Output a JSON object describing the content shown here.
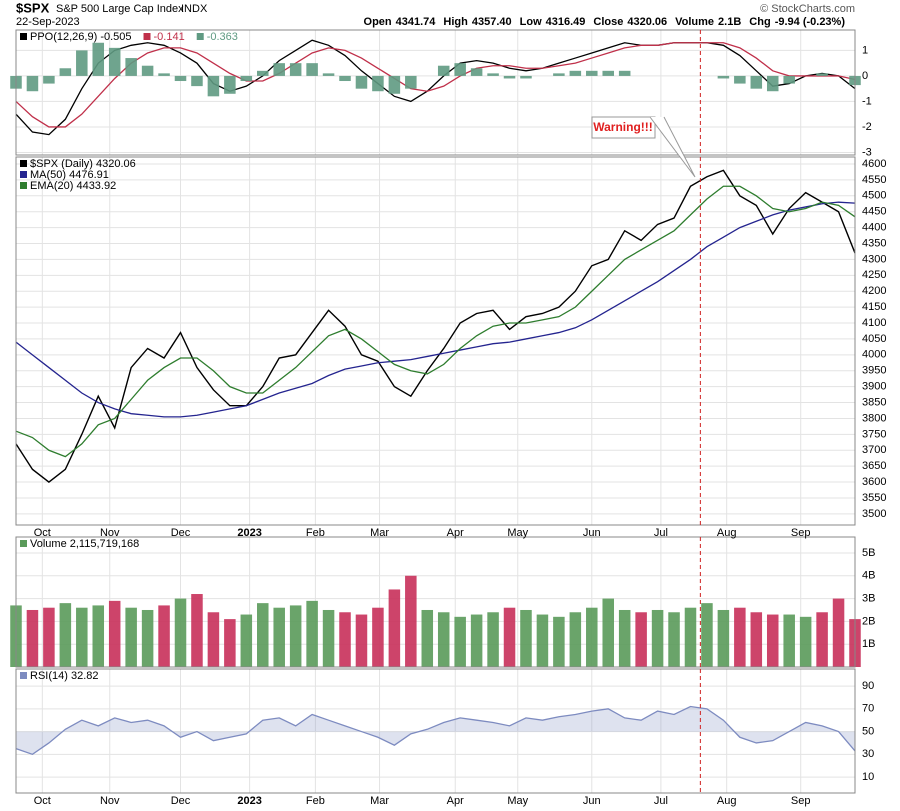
{
  "header": {
    "symbol": "$SPX",
    "name": "S&P 500 Large Cap Index",
    "exchange": "INDX",
    "date": "22-Sep-2023",
    "credit": "© StockCharts.com",
    "quote": [
      {
        "label": "Open",
        "value": "4341.74"
      },
      {
        "label": "High",
        "value": "4357.40"
      },
      {
        "label": "Low",
        "value": "4316.49"
      },
      {
        "label": "Close",
        "value": "4320.06"
      },
      {
        "label": "Volume",
        "value": "2.1B"
      },
      {
        "label": "Chg",
        "value": "-9.94 (-0.23%)"
      }
    ]
  },
  "chart_data": [
    {
      "type": "line",
      "ylim": [
        -3.1,
        1.8
      ],
      "yticks": [
        1,
        0,
        -1,
        -2,
        -3
      ],
      "grid": true,
      "series": [
        {
          "name": "PPO(12,26,9) -0.505",
          "color": "#000000",
          "values": [
            -1.5,
            -2.2,
            -2.3,
            -1.7,
            -0.5,
            0.5,
            1.0,
            1.2,
            1.3,
            1.2,
            0.9,
            0.5,
            -0.3,
            -0.6,
            -0.4,
            0,
            0.6,
            1.0,
            1.4,
            1.2,
            0.8,
            0.2,
            -0.3,
            -0.8,
            -1.0,
            -0.6,
            0,
            0.5,
            0.6,
            0.5,
            0.3,
            0.2,
            0.3,
            0.5,
            0.7,
            0.9,
            1.1,
            1.3,
            1.2,
            1.2,
            1.3,
            1.3,
            1.3,
            1.2,
            0.8,
            0.2,
            -0.4,
            -0.3,
            0,
            0.1,
            0,
            -0.5
          ]
        },
        {
          "name": "-0.141",
          "color": "#c0304a",
          "values": [
            -1.0,
            -1.6,
            -2.0,
            -2.0,
            -1.5,
            -0.8,
            -0.1,
            0.5,
            0.9,
            1.1,
            1.1,
            0.9,
            0.5,
            0.1,
            -0.2,
            -0.2,
            0.1,
            0.5,
            0.9,
            1.1,
            1.0,
            0.7,
            0.3,
            -0.1,
            -0.5,
            -0.6,
            -0.4,
            0,
            0.3,
            0.4,
            0.4,
            0.3,
            0.3,
            0.4,
            0.5,
            0.7,
            0.9,
            1.1,
            1.2,
            1.2,
            1.3,
            1.3,
            1.3,
            1.3,
            1.1,
            0.7,
            0.2,
            0,
            0,
            0,
            0,
            -0.14
          ]
        },
        {
          "name": "-0.363",
          "color": "#5f9a82",
          "kind": "histogram",
          "values": [
            -0.5,
            -0.6,
            -0.3,
            0.3,
            1.0,
            1.3,
            1.1,
            0.7,
            0.4,
            0.1,
            -0.2,
            -0.4,
            -0.8,
            -0.7,
            -0.2,
            0.2,
            0.5,
            0.5,
            0.5,
            0.1,
            -0.2,
            -0.5,
            -0.6,
            -0.7,
            -0.5,
            0,
            0.4,
            0.5,
            0.3,
            0.1,
            -0.1,
            -0.1,
            0,
            0.1,
            0.2,
            0.2,
            0.2,
            0.2,
            0,
            0,
            0,
            0,
            0,
            -0.1,
            -0.3,
            -0.5,
            -0.6,
            -0.3,
            0,
            0.1,
            0,
            -0.36
          ]
        }
      ]
    },
    {
      "type": "line",
      "ylim": [
        3465,
        4622
      ],
      "yticks": [
        3500,
        3550,
        3600,
        3650,
        3700,
        3750,
        3800,
        3850,
        3900,
        3950,
        4000,
        4050,
        4100,
        4150,
        4200,
        4250,
        4300,
        4350,
        4400,
        4450,
        4500,
        4550,
        4600
      ],
      "grid": true,
      "x": [
        0,
        1,
        2,
        3,
        4,
        5,
        6,
        7,
        8,
        9,
        10,
        11,
        12,
        13,
        14,
        15,
        16,
        17,
        18,
        19,
        20,
        21,
        22,
        23,
        24,
        25,
        26,
        27,
        28,
        29,
        30,
        31,
        32,
        33,
        34,
        35,
        36,
        37,
        38,
        39,
        40,
        41,
        42,
        43,
        44,
        45,
        46,
        47,
        48,
        49,
        50,
        51
      ],
      "xlim": [
        0,
        51
      ],
      "xticks": [
        {
          "value": 1.6,
          "label": "Oct"
        },
        {
          "value": 5.7,
          "label": "Nov"
        },
        {
          "value": 10.0,
          "label": "Dec"
        },
        {
          "value": 14.2,
          "label": "2023"
        },
        {
          "value": 18.2,
          "label": "Feb"
        },
        {
          "value": 22.1,
          "label": "Mar"
        },
        {
          "value": 26.7,
          "label": "Apr"
        },
        {
          "value": 30.5,
          "label": "May"
        },
        {
          "value": 35.0,
          "label": "Jun"
        },
        {
          "value": 39.2,
          "label": "Jul"
        },
        {
          "value": 43.2,
          "label": "Aug"
        },
        {
          "value": 47.7,
          "label": "Sep"
        }
      ],
      "marker_x": 41.6,
      "annotation": "Warning!!!",
      "series": [
        {
          "name": "$SPX (Daily) 4320.06",
          "color": "#000000",
          "values": [
            3720,
            3640,
            3600,
            3640,
            3750,
            3870,
            3770,
            3960,
            4020,
            3990,
            4070,
            3960,
            3890,
            3840,
            3840,
            3900,
            3990,
            4000,
            4070,
            4140,
            4090,
            4000,
            3980,
            3900,
            3870,
            3950,
            4020,
            4100,
            4130,
            4140,
            4080,
            4120,
            4130,
            4150,
            4200,
            4280,
            4300,
            4390,
            4360,
            4410,
            4430,
            4530,
            4560,
            4580,
            4500,
            4470,
            4380,
            4460,
            4510,
            4480,
            4450,
            4320
          ]
        },
        {
          "name": "MA(50) 4476.91",
          "color": "#24248f",
          "values": [
            4040,
            4000,
            3960,
            3920,
            3880,
            3850,
            3830,
            3815,
            3810,
            3805,
            3805,
            3810,
            3820,
            3830,
            3840,
            3860,
            3880,
            3895,
            3910,
            3935,
            3955,
            3965,
            3975,
            3980,
            3985,
            3995,
            4005,
            4015,
            4025,
            4035,
            4040,
            4050,
            4060,
            4070,
            4085,
            4110,
            4140,
            4170,
            4200,
            4230,
            4265,
            4300,
            4340,
            4370,
            4400,
            4420,
            4440,
            4455,
            4465,
            4475,
            4480,
            4477
          ]
        },
        {
          "name": "EMA(20) 4433.92",
          "color": "#2e7d2e",
          "values": [
            3760,
            3740,
            3700,
            3680,
            3720,
            3780,
            3800,
            3860,
            3920,
            3960,
            3990,
            3990,
            3950,
            3900,
            3880,
            3880,
            3920,
            3960,
            4010,
            4060,
            4080,
            4050,
            4010,
            3970,
            3950,
            3940,
            3970,
            4020,
            4060,
            4090,
            4100,
            4100,
            4110,
            4120,
            4150,
            4200,
            4250,
            4300,
            4330,
            4360,
            4390,
            4440,
            4490,
            4530,
            4530,
            4500,
            4460,
            4450,
            4460,
            4480,
            4470,
            4434
          ]
        }
      ]
    },
    {
      "type": "bar",
      "ylim": [
        0,
        5.7
      ],
      "yticks": [
        {
          "value": 1,
          "label": "1B"
        },
        {
          "value": 2,
          "label": "2B"
        },
        {
          "value": 3,
          "label": "3B"
        },
        {
          "value": 4,
          "label": "4B"
        },
        {
          "value": 5,
          "label": "5B"
        }
      ],
      "grid": true,
      "up_color": "#5a9a5a",
      "down_color": "#c8305a",
      "series": [
        {
          "name": "Volume 2,115,719,168",
          "values": [
            2.7,
            2.5,
            2.6,
            2.8,
            2.6,
            2.7,
            2.9,
            2.6,
            2.5,
            2.7,
            3.0,
            3.2,
            2.4,
            2.1,
            2.3,
            2.8,
            2.6,
            2.7,
            2.9,
            2.5,
            2.4,
            2.3,
            2.6,
            3.4,
            4.0,
            2.5,
            2.4,
            2.2,
            2.3,
            2.4,
            2.6,
            2.5,
            2.3,
            2.2,
            2.4,
            2.6,
            3.0,
            2.5,
            2.4,
            2.5,
            2.4,
            2.6,
            2.8,
            2.5,
            2.6,
            2.4,
            2.3,
            2.3,
            2.2,
            2.4,
            3.0,
            2.1
          ]
        }
      ]
    },
    {
      "type": "area",
      "ylim": [
        -4,
        105
      ],
      "yticks": [
        10,
        30,
        50,
        70,
        90
      ],
      "grid": true,
      "series": [
        {
          "name": "RSI(14) 32.82",
          "color": "#7d8bc0",
          "values": [
            35,
            30,
            40,
            52,
            60,
            55,
            62,
            58,
            60,
            55,
            45,
            50,
            42,
            45,
            48,
            60,
            62,
            55,
            65,
            60,
            55,
            50,
            45,
            38,
            48,
            52,
            58,
            62,
            60,
            58,
            55,
            62,
            60,
            63,
            65,
            68,
            70,
            62,
            60,
            68,
            65,
            72,
            70,
            60,
            45,
            40,
            42,
            50,
            58,
            55,
            50,
            33
          ]
        }
      ]
    }
  ]
}
